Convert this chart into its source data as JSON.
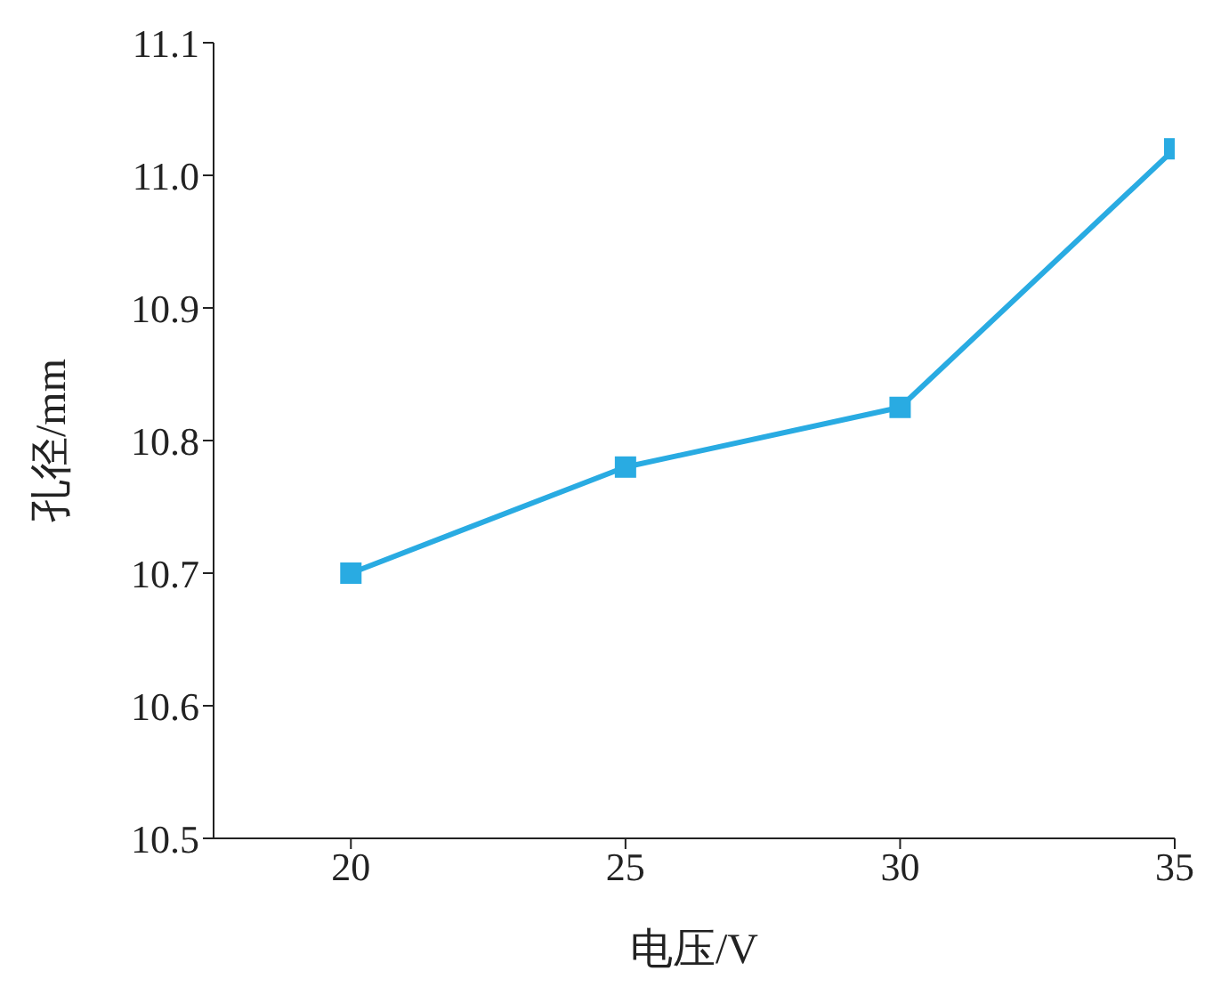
{
  "chart_data": {
    "type": "line",
    "xlabel": "电压/V",
    "ylabel": "孔径/mm",
    "x": [
      20,
      25,
      30,
      35
    ],
    "series": [
      {
        "color": "#29abe2",
        "values": [
          10.7,
          10.78,
          10.825,
          11.02
        ]
      }
    ],
    "xlim": [
      17.5,
      35
    ],
    "xticks": [
      20,
      25,
      30,
      35
    ],
    "ylim": [
      10.5,
      11.1
    ],
    "yticks": [
      {
        "value": 10.5,
        "label": "10.5"
      },
      {
        "value": 10.6,
        "label": "10.6"
      },
      {
        "value": 10.7,
        "label": "10.7"
      },
      {
        "value": 10.8,
        "label": "10.8"
      },
      {
        "value": 10.9,
        "label": "10.9"
      },
      {
        "value": 11.0,
        "label": "11.0"
      },
      {
        "value": 11.1,
        "label": "11.1"
      }
    ],
    "grid": false,
    "legend": false,
    "marker": "square",
    "line_style": "solid"
  }
}
